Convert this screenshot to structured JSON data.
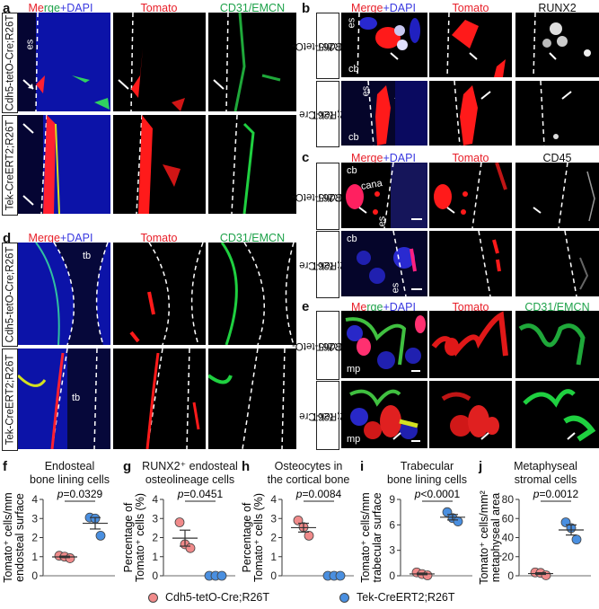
{
  "figure": {
    "panels": {
      "a": {
        "label": "a",
        "channels": [
          "Merge+DAPI",
          "Tomato",
          "CD31/EMCN"
        ],
        "rows": [
          "Cdh5-tetO-Cre;R26T",
          "Tek-CreERT2;R26T"
        ],
        "annotation": "es"
      },
      "b": {
        "label": "b",
        "channels": [
          "Merge+DAPI",
          "Tomato",
          "RUNX2"
        ],
        "rows": [
          "Cdh5-tetO-Cre;R26T",
          "Tek-Cre ERT2;R26T"
        ],
        "annotations": [
          "es",
          "cb"
        ]
      },
      "c": {
        "label": "c",
        "channels": [
          "Merge+DAPI",
          "Tomato",
          "CD45"
        ],
        "rows": [
          "Cdh5-tetO-Cre;R26T",
          "Tek-Cre ERT2;R26T"
        ],
        "annotations": [
          "cb",
          "cana",
          "es"
        ]
      },
      "d": {
        "label": "d",
        "channels": [
          "Merge+DAPI",
          "Tomato",
          "CD31/EMCN"
        ],
        "rows": [
          "Cdh5-tetO-Cre;R26T",
          "Tek-CreERT2;R26T"
        ],
        "annotation": "tb"
      },
      "e": {
        "label": "e",
        "channels": [
          "Merge+DAPI",
          "Tomato",
          "CD31/EMCN"
        ],
        "rows": [
          "Cdh5-tetO-Cre;R26T",
          "Tek-Cre ERT2;R26T"
        ],
        "annotation": "mp"
      }
    },
    "channel_parts": {
      "merge": "Merge",
      "plus": "+",
      "dapi": "DAPI",
      "merge_a": "Me",
      "merge_b": "rge"
    },
    "row_label_lines": {
      "cdh5_full": "Cdh5-tetO-Cre;R26T",
      "tek_full": "Tek-CreERT2;R26T",
      "cdh5_l1": "Cdh5-tetO-",
      "cdh5_l2": "Cre;R26T",
      "tek_l1": "Tek-Cre",
      "tek_l2": "ERT2;R26T"
    },
    "legend": [
      {
        "label": "Cdh5-tetO-Cre;R26T",
        "color": "#f08a8a"
      },
      {
        "label": "Tek-CreERT2;R26T",
        "color": "#4a8fe0"
      }
    ]
  },
  "chart_data": [
    {
      "panel": "f",
      "type": "scatter",
      "title": "Endosteal bone lining cells",
      "title_lines": [
        "Endosteal",
        "bone lining cells"
      ],
      "ylabel_lines": [
        "Tomato⁺ cells/mm",
        "endosteal surface"
      ],
      "yticks": [
        0,
        1,
        2,
        3,
        4
      ],
      "ylim": [
        0,
        4
      ],
      "p_value": "p=0.0329",
      "series": [
        {
          "name": "Cdh5-tetO-Cre;R26T",
          "values": [
            1.05,
            1.0,
            0.92
          ],
          "mean": 0.99,
          "sem": 0.04
        },
        {
          "name": "Tek-CreERT2;R26T",
          "values": [
            3.05,
            3.0,
            2.1
          ],
          "mean": 2.75,
          "sem": 0.3
        }
      ]
    },
    {
      "panel": "g",
      "type": "scatter",
      "title": "RUNX2⁺ endosteal osteolineage cells",
      "title_lines": [
        "RUNX2⁺ endosteal",
        "osteolineage cells"
      ],
      "ylabel_lines": [
        "Percentage of",
        "Tomato⁺ cells (%)"
      ],
      "yticks": [
        0,
        1,
        2,
        3,
        4
      ],
      "ylim": [
        0,
        4
      ],
      "p_value": "p=0.0451",
      "series": [
        {
          "name": "Cdh5-tetO-Cre;R26T",
          "values": [
            2.8,
            1.65,
            1.45
          ],
          "mean": 1.97,
          "sem": 0.42
        },
        {
          "name": "Tek-CreERT2;R26T",
          "values": [
            0,
            0,
            0
          ],
          "mean": 0,
          "sem": 0
        }
      ]
    },
    {
      "panel": "h",
      "type": "scatter",
      "title": "Osteocytes in the cortical bone",
      "title_lines": [
        "Osteocytes in",
        "the cortical bone"
      ],
      "ylabel_lines": [
        "Percentage of",
        "Tomato⁺ cells (%)"
      ],
      "yticks": [
        0,
        1,
        2,
        3,
        4
      ],
      "ylim": [
        0,
        4
      ],
      "p_value": "p=0.0084",
      "series": [
        {
          "name": "Cdh5-tetO-Cre;R26T",
          "values": [
            2.9,
            2.55,
            2.1
          ],
          "mean": 2.52,
          "sem": 0.23
        },
        {
          "name": "Tek-CreERT2;R26T",
          "values": [
            0,
            0,
            0
          ],
          "mean": 0,
          "sem": 0
        }
      ]
    },
    {
      "panel": "i",
      "type": "scatter",
      "title": "Trabecular bone lining cells",
      "title_lines": [
        "Trabecular",
        "bone lining cells"
      ],
      "ylabel_lines": [
        "Tomato⁺ cells/mm",
        "trabecular surface"
      ],
      "yticks": [
        0,
        3,
        6,
        9
      ],
      "ylim": [
        0,
        9
      ],
      "p_value": "p<0.0001",
      "series": [
        {
          "name": "Cdh5-tetO-Cre;R26T",
          "values": [
            0.4,
            0.2,
            0.05
          ],
          "mean": 0.22,
          "sem": 0.1
        },
        {
          "name": "Tek-CreERT2;R26T",
          "values": [
            7.5,
            6.8,
            6.4
          ],
          "mean": 6.9,
          "sem": 0.32
        }
      ]
    },
    {
      "panel": "j",
      "type": "scatter",
      "title": "Metaphyseal stromal cells",
      "title_lines": [
        "Metaphyseal",
        "stromal cells"
      ],
      "ylabel_lines": [
        "Tomato⁺ cells/mm²",
        "metaphyseal area"
      ],
      "yticks": [
        0,
        20,
        40,
        60,
        80
      ],
      "ylim": [
        0,
        80
      ],
      "p_value": "p=0.0012",
      "series": [
        {
          "name": "Cdh5-tetO-Cre;R26T",
          "values": [
            3.5,
            3.0,
            0.5
          ],
          "mean": 2.3,
          "sem": 0.9
        },
        {
          "name": "Tek-CreERT2;R26T",
          "values": [
            56,
            50,
            38
          ],
          "mean": 48,
          "sem": 5.3
        }
      ]
    }
  ]
}
